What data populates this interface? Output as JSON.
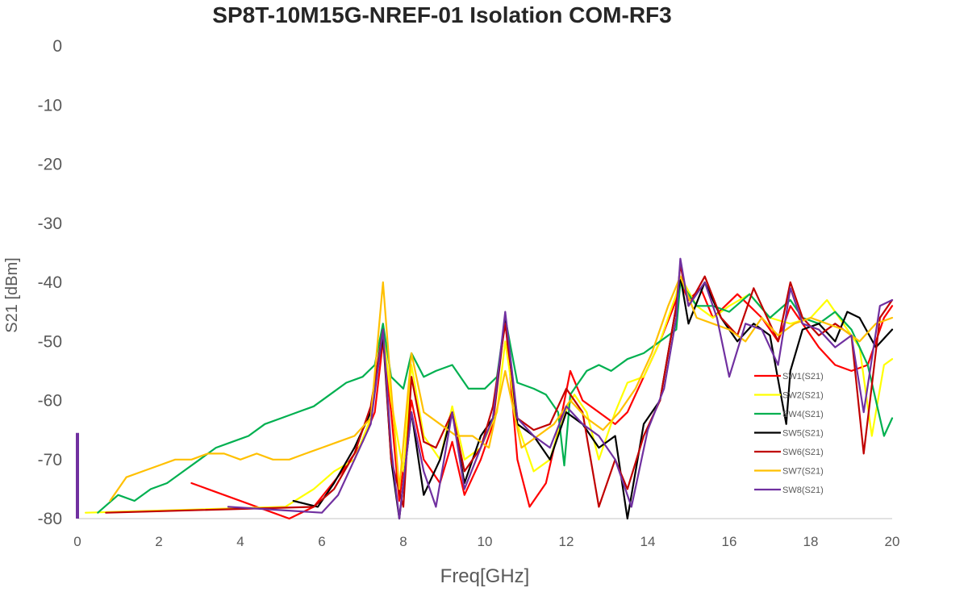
{
  "chart_data": {
    "type": "line",
    "title": "SP8T-10M15G-NREF-01  Isolation   COM-RF3",
    "xlabel": "Freq[GHz]",
    "ylabel": "S21  [dBm]",
    "xlim": [
      0,
      20
    ],
    "ylim": [
      -80,
      0
    ],
    "xticks": [
      "0",
      "2",
      "4",
      "6",
      "8",
      "10",
      "12",
      "14",
      "16",
      "18",
      "20"
    ],
    "yticks": [
      "0",
      "-10",
      "-20",
      "-30",
      "-40",
      "-50",
      "-60",
      "-70",
      "-80"
    ],
    "grid": false,
    "legend_position": "right",
    "series": [
      {
        "name": "SW1(S21)",
        "color": "#ff0000",
        "x": [
          2.8,
          5.2,
          5.8,
          6.5,
          7.0,
          7.3,
          7.5,
          7.7,
          7.9,
          8.2,
          8.5,
          8.9,
          9.2,
          9.5,
          9.9,
          10.2,
          10.5,
          10.8,
          11.1,
          11.5,
          11.9,
          12.1,
          12.4,
          12.8,
          13.2,
          13.5,
          13.9,
          14.3,
          14.7,
          14.8,
          15.0,
          15.3,
          15.6,
          15.9,
          16.2,
          16.5,
          16.8,
          17.2,
          17.5,
          17.8,
          18.2,
          18.6,
          19.0,
          19.4,
          19.8,
          20.0
        ],
        "y": [
          -74,
          -80,
          -78,
          -72,
          -67,
          -62,
          -50,
          -62,
          -77,
          -60,
          -70,
          -74,
          -67,
          -76,
          -70,
          -64,
          -46,
          -70,
          -78,
          -74,
          -62,
          -55,
          -60,
          -62,
          -64,
          -62,
          -56,
          -50,
          -43,
          -40,
          -43,
          -41,
          -46,
          -44,
          -42,
          -44,
          -46,
          -50,
          -44,
          -47,
          -51,
          -54,
          -55,
          -54,
          -46,
          -44
        ]
      },
      {
        "name": "SW2(S21)",
        "color": "#ffff00",
        "x": [
          0.2,
          5.1,
          5.8,
          6.3,
          6.8,
          7.2,
          7.5,
          7.7,
          8.0,
          8.2,
          8.5,
          8.9,
          9.2,
          9.5,
          9.9,
          10.3,
          10.5,
          10.8,
          11.2,
          11.6,
          11.9,
          12.2,
          12.5,
          12.8,
          13.2,
          13.5,
          13.9,
          14.3,
          14.7,
          14.8,
          15.2,
          15.6,
          16.0,
          16.5,
          17.0,
          17.5,
          18.0,
          18.4,
          18.8,
          19.2,
          19.5,
          19.8,
          20.0
        ],
        "y": [
          -79,
          -78,
          -75,
          -72,
          -70,
          -63,
          -48,
          -60,
          -72,
          -54,
          -66,
          -70,
          -61,
          -70,
          -68,
          -62,
          -50,
          -64,
          -72,
          -70,
          -63,
          -59,
          -62,
          -70,
          -62,
          -57,
          -56,
          -50,
          -42,
          -39,
          -44,
          -46,
          -44,
          -42,
          -46,
          -47,
          -46,
          -43,
          -47,
          -51,
          -66,
          -54,
          -53
        ]
      },
      {
        "name": "SW4(S21)",
        "color": "#00b050",
        "x": [
          0.5,
          1.0,
          1.4,
          1.8,
          2.2,
          2.6,
          3.0,
          3.4,
          3.8,
          4.2,
          4.6,
          5.0,
          5.4,
          5.8,
          6.2,
          6.6,
          7.0,
          7.3,
          7.5,
          7.7,
          8.0,
          8.2,
          8.5,
          8.8,
          9.2,
          9.6,
          10.0,
          10.3,
          10.5,
          10.8,
          11.2,
          11.5,
          11.8,
          11.95,
          12.1,
          12.5,
          12.8,
          13.1,
          13.5,
          13.9,
          14.3,
          14.7,
          14.8,
          15.2,
          15.6,
          16.0,
          16.5,
          17.0,
          17.5,
          17.8,
          18.2,
          18.6,
          19.0,
          19.4,
          19.8,
          20.0
        ],
        "y": [
          -79,
          -76,
          -77,
          -75,
          -74,
          -72,
          -70,
          -68,
          -67,
          -66,
          -64,
          -63,
          -62,
          -61,
          -59,
          -57,
          -56,
          -54,
          -47,
          -56,
          -58,
          -52,
          -56,
          -55,
          -54,
          -58,
          -58,
          -56,
          -46,
          -57,
          -58,
          -59,
          -62,
          -71,
          -59,
          -55,
          -54,
          -55,
          -53,
          -52,
          -50,
          -48,
          -40,
          -44,
          -44,
          -45,
          -42,
          -46,
          -43,
          -46,
          -47,
          -45,
          -48,
          -54,
          -66,
          -63
        ]
      },
      {
        "name": "SW5(S21)",
        "color": "#000000",
        "x": [
          5.3,
          5.9,
          6.3,
          6.8,
          7.2,
          7.5,
          7.7,
          7.9,
          8.2,
          8.5,
          8.9,
          9.2,
          9.5,
          9.9,
          10.2,
          10.5,
          10.8,
          11.2,
          11.6,
          12.0,
          12.4,
          12.8,
          13.2,
          13.5,
          13.9,
          14.3,
          14.7,
          14.8,
          15.0,
          15.4,
          15.8,
          16.2,
          16.6,
          17.0,
          17.4,
          17.5,
          17.8,
          18.2,
          18.6,
          18.9,
          19.2,
          19.6,
          20.0
        ],
        "y": [
          -77,
          -78,
          -74,
          -68,
          -62,
          -49,
          -70,
          -80,
          -62,
          -76,
          -70,
          -62,
          -74,
          -66,
          -63,
          -46,
          -64,
          -66,
          -70,
          -62,
          -64,
          -68,
          -66,
          -80,
          -64,
          -60,
          -44,
          -39,
          -47,
          -40,
          -46,
          -50,
          -47,
          -49,
          -64,
          -55,
          -48,
          -47,
          -50,
          -45,
          -46,
          -51,
          -48
        ]
      },
      {
        "name": "SW6(S21)",
        "color": "#c00000",
        "x": [
          0.7,
          5.8,
          6.3,
          6.8,
          7.2,
          7.5,
          7.7,
          8.0,
          8.2,
          8.5,
          8.8,
          9.2,
          9.5,
          9.9,
          10.2,
          10.5,
          10.8,
          11.2,
          11.6,
          12.0,
          12.4,
          12.8,
          13.2,
          13.5,
          13.9,
          14.3,
          14.7,
          14.8,
          15.0,
          15.4,
          15.8,
          16.2,
          16.6,
          17.0,
          17.2,
          17.5,
          17.8,
          18.2,
          18.6,
          19.0,
          19.3,
          19.7,
          20.0
        ],
        "y": [
          -79,
          -78,
          -75,
          -69,
          -61,
          -48,
          -70,
          -78,
          -56,
          -67,
          -68,
          -62,
          -72,
          -68,
          -61,
          -47,
          -63,
          -65,
          -64,
          -58,
          -62,
          -78,
          -70,
          -75,
          -66,
          -60,
          -44,
          -37,
          -44,
          -39,
          -46,
          -49,
          -41,
          -47,
          -50,
          -40,
          -46,
          -49,
          -47,
          -49,
          -69,
          -46,
          -43
        ]
      },
      {
        "name": "SW7(S21)",
        "color": "#ffc000",
        "x": [
          0.8,
          1.2,
          1.6,
          2.0,
          2.4,
          2.8,
          3.2,
          3.6,
          4.0,
          4.4,
          4.8,
          5.2,
          5.6,
          6.0,
          6.4,
          6.8,
          7.2,
          7.5,
          7.7,
          7.9,
          8.2,
          8.5,
          8.9,
          9.3,
          9.7,
          10.1,
          10.5,
          10.9,
          11.3,
          11.7,
          12.1,
          12.5,
          12.9,
          13.3,
          13.7,
          14.1,
          14.5,
          14.8,
          15.2,
          15.6,
          16.0,
          16.4,
          16.8,
          17.2,
          17.6,
          18.0,
          18.4,
          18.8,
          19.2,
          19.6,
          20.0
        ],
        "y": [
          -77,
          -73,
          -72,
          -71,
          -70,
          -70,
          -69,
          -69,
          -70,
          -69,
          -70,
          -70,
          -69,
          -68,
          -67,
          -66,
          -63,
          -40,
          -58,
          -75,
          -52,
          -62,
          -64,
          -66,
          -66,
          -68,
          -55,
          -68,
          -66,
          -64,
          -60,
          -63,
          -65,
          -62,
          -58,
          -52,
          -44,
          -39,
          -46,
          -47,
          -48,
          -50,
          -46,
          -49,
          -47,
          -46,
          -47,
          -48,
          -50,
          -47,
          -46
        ]
      },
      {
        "name": "SW8(S21)",
        "color": "#7030a0",
        "x": [
          3.7,
          6.0,
          6.4,
          6.8,
          7.2,
          7.5,
          7.7,
          7.9,
          8.2,
          8.5,
          8.8,
          9.2,
          9.5,
          9.9,
          10.2,
          10.5,
          10.8,
          11.2,
          11.6,
          12.0,
          12.4,
          12.8,
          13.2,
          13.6,
          14.0,
          14.4,
          14.7,
          14.8,
          15.0,
          15.4,
          15.7,
          16.0,
          16.4,
          16.8,
          17.2,
          17.5,
          17.8,
          18.2,
          18.6,
          19.0,
          19.3,
          19.7,
          20.0
        ],
        "y": [
          -78,
          -79,
          -76,
          -70,
          -64,
          -48,
          -68,
          -80,
          -62,
          -72,
          -78,
          -62,
          -75,
          -68,
          -63,
          -45,
          -63,
          -66,
          -68,
          -61,
          -64,
          -66,
          -70,
          -78,
          -65,
          -58,
          -46,
          -36,
          -44,
          -40,
          -46,
          -56,
          -47,
          -48,
          -54,
          -41,
          -47,
          -48,
          -51,
          -49,
          -62,
          -44,
          -43
        ]
      }
    ],
    "annotations": [
      {
        "type": "vertical-bar",
        "x": 0,
        "y_top": -65.5,
        "color": "#7030a0"
      }
    ]
  }
}
